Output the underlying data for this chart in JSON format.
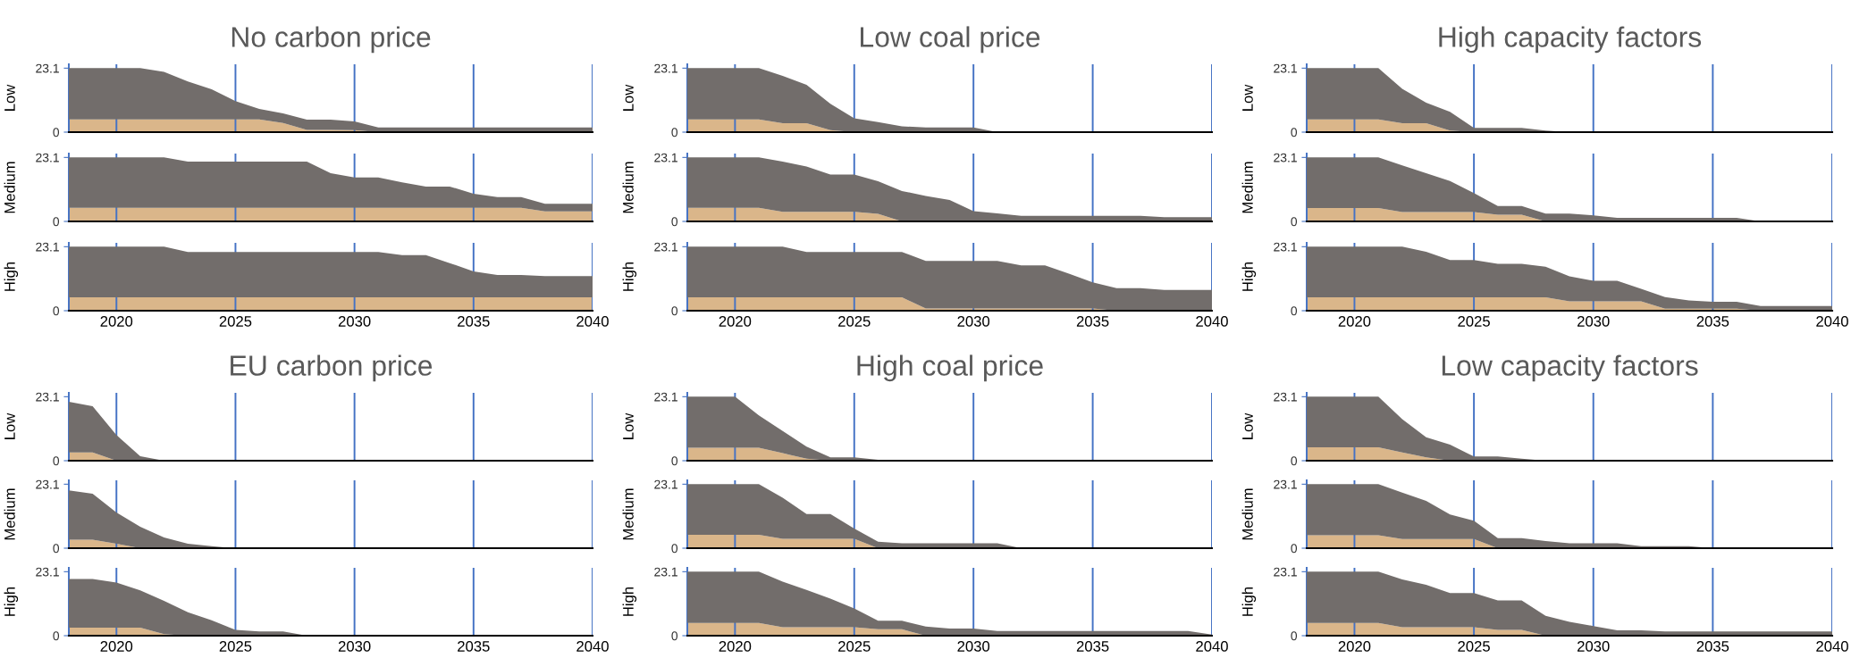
{
  "chart_data": [
    {
      "type": "area",
      "stacked": true,
      "title": "No carbon price",
      "ylabel": "Low",
      "x": [
        2018,
        2019,
        2020,
        2021,
        2022,
        2023,
        2024,
        2025,
        2026,
        2027,
        2028,
        2029,
        2030,
        2031,
        2032,
        2033,
        2034,
        2035,
        2036,
        2037,
        2038,
        2039,
        2040
      ],
      "xlim": [
        2018,
        2040
      ],
      "xticks": [
        2020,
        2025,
        2030,
        2035,
        2040
      ],
      "ylim": [
        0,
        24.5
      ],
      "yticks": [
        0,
        23.1
      ],
      "grid": "x",
      "tick_labels": "y",
      "series": [
        {
          "color": "#dab68a",
          "values": [
            4.6,
            4.6,
            4.6,
            4.6,
            4.6,
            4.6,
            4.6,
            4.6,
            4.6,
            3.3,
            0.8,
            0.8,
            0.7,
            0,
            0,
            0,
            0,
            0,
            0,
            0,
            0,
            0,
            0
          ]
        },
        {
          "color": "#726d6b",
          "values": [
            18.5,
            18.5,
            18.5,
            18.5,
            17.2,
            13.7,
            10.9,
            6.6,
            3.8,
            3.5,
            3.7,
            3.7,
            3.2,
            1.7,
            1.7,
            1.7,
            1.7,
            1.7,
            1.7,
            1.7,
            1.7,
            1.7,
            1.7
          ]
        }
      ]
    },
    {
      "type": "area",
      "stacked": true,
      "ylabel": "Medium",
      "x": [
        2018,
        2019,
        2020,
        2021,
        2022,
        2023,
        2024,
        2025,
        2026,
        2027,
        2028,
        2029,
        2030,
        2031,
        2032,
        2033,
        2034,
        2035,
        2036,
        2037,
        2038,
        2039,
        2040
      ],
      "xlim": [
        2018,
        2040
      ],
      "xticks": [
        2020,
        2025,
        2030,
        2035,
        2040
      ],
      "ylim": [
        0,
        24.5
      ],
      "yticks": [
        0,
        23.1
      ],
      "grid": "x",
      "tick_labels": "y",
      "series": [
        {
          "color": "#dab68a",
          "values": [
            4.9,
            4.9,
            4.9,
            4.9,
            4.9,
            4.9,
            4.9,
            4.9,
            4.9,
            4.9,
            4.9,
            4.9,
            4.9,
            4.9,
            4.9,
            4.9,
            4.9,
            4.9,
            4.9,
            4.9,
            3.6,
            3.6,
            3.6
          ]
        },
        {
          "color": "#726d6b",
          "values": [
            18.2,
            18.2,
            18.2,
            18.2,
            18.2,
            16.7,
            16.7,
            16.7,
            16.7,
            16.7,
            16.7,
            12.5,
            11.0,
            11.0,
            9.2,
            7.7,
            7.7,
            5.1,
            3.9,
            3.9,
            2.8,
            2.8,
            2.8
          ]
        }
      ]
    },
    {
      "type": "area",
      "stacked": true,
      "ylabel": "High",
      "x": [
        2018,
        2019,
        2020,
        2021,
        2022,
        2023,
        2024,
        2025,
        2026,
        2027,
        2028,
        2029,
        2030,
        2031,
        2032,
        2033,
        2034,
        2035,
        2036,
        2037,
        2038,
        2039,
        2040
      ],
      "xlim": [
        2018,
        2040
      ],
      "xticks": [
        2020,
        2025,
        2030,
        2035,
        2040
      ],
      "ylim": [
        0,
        24.5
      ],
      "yticks": [
        0,
        23.1
      ],
      "grid": "x",
      "series": [
        {
          "color": "#dab68a",
          "values": [
            4.8,
            4.8,
            4.8,
            4.8,
            4.8,
            4.8,
            4.8,
            4.8,
            4.8,
            4.8,
            4.8,
            4.8,
            4.8,
            4.8,
            4.8,
            4.8,
            4.8,
            4.8,
            4.8,
            4.8,
            4.8,
            4.8,
            4.8
          ]
        },
        {
          "color": "#726d6b",
          "values": [
            18.3,
            18.3,
            18.3,
            18.3,
            18.3,
            16.4,
            16.4,
            16.4,
            16.4,
            16.4,
            16.4,
            16.4,
            16.4,
            16.4,
            15.3,
            15.3,
            12.4,
            9.4,
            8.1,
            8.1,
            7.7,
            7.7,
            7.7
          ]
        }
      ]
    },
    {
      "type": "area",
      "stacked": true,
      "title": "Low coal price",
      "ylabel": "Low",
      "x": [
        2018,
        2019,
        2020,
        2021,
        2022,
        2023,
        2024,
        2025,
        2026,
        2027,
        2028,
        2029,
        2030,
        2031,
        2032,
        2033,
        2034,
        2035,
        2036,
        2037,
        2038,
        2039,
        2040
      ],
      "xlim": [
        2018,
        2040
      ],
      "xticks": [
        2020,
        2025,
        2030,
        2035,
        2040
      ],
      "ylim": [
        0,
        24.5
      ],
      "yticks": [
        0,
        23.1
      ],
      "grid": "x",
      "tick_labels": "y",
      "series": [
        {
          "color": "#dab68a",
          "values": [
            4.6,
            4.6,
            4.6,
            4.6,
            3.2,
            3.2,
            0.7,
            0,
            0,
            0,
            0,
            0,
            0,
            0,
            0,
            0,
            0,
            0,
            0,
            0,
            0,
            0,
            0
          ]
        },
        {
          "color": "#726d6b",
          "values": [
            18.5,
            18.5,
            18.5,
            18.5,
            17.1,
            13.9,
            9.5,
            5.0,
            3.6,
            2.1,
            1.7,
            1.7,
            1.7,
            0,
            0,
            0,
            0,
            0,
            0,
            0,
            0,
            0,
            0
          ]
        }
      ]
    },
    {
      "type": "area",
      "stacked": true,
      "ylabel": "Medium",
      "x": [
        2018,
        2019,
        2020,
        2021,
        2022,
        2023,
        2024,
        2025,
        2026,
        2027,
        2028,
        2029,
        2030,
        2031,
        2032,
        2033,
        2034,
        2035,
        2036,
        2037,
        2038,
        2039,
        2040
      ],
      "xlim": [
        2018,
        2040
      ],
      "xticks": [
        2020,
        2025,
        2030,
        2035,
        2040
      ],
      "ylim": [
        0,
        24.5
      ],
      "yticks": [
        0,
        23.1
      ],
      "grid": "x",
      "tick_labels": "y",
      "series": [
        {
          "color": "#dab68a",
          "values": [
            4.9,
            4.9,
            4.9,
            4.9,
            3.5,
            3.5,
            3.5,
            3.5,
            2.7,
            0,
            0,
            0,
            0,
            0,
            0,
            0,
            0,
            0,
            0,
            0,
            0,
            0,
            0
          ]
        },
        {
          "color": "#726d6b",
          "values": [
            18.2,
            18.2,
            18.2,
            18.2,
            18.1,
            16.3,
            13.4,
            13.4,
            11.8,
            11.0,
            9.2,
            7.7,
            3.7,
            2.9,
            2.0,
            2.0,
            2.0,
            2.0,
            2.0,
            2.0,
            1.5,
            1.5,
            1.5
          ]
        }
      ]
    },
    {
      "type": "area",
      "stacked": true,
      "ylabel": "High",
      "x": [
        2018,
        2019,
        2020,
        2021,
        2022,
        2023,
        2024,
        2025,
        2026,
        2027,
        2028,
        2029,
        2030,
        2031,
        2032,
        2033,
        2034,
        2035,
        2036,
        2037,
        2038,
        2039,
        2040
      ],
      "xlim": [
        2018,
        2040
      ],
      "xticks": [
        2020,
        2025,
        2030,
        2035,
        2040
      ],
      "ylim": [
        0,
        24.5
      ],
      "yticks": [
        0,
        23.1
      ],
      "grid": "x",
      "series": [
        {
          "color": "#dab68a",
          "values": [
            4.8,
            4.8,
            4.8,
            4.8,
            4.8,
            4.8,
            4.8,
            4.8,
            4.8,
            4.8,
            0.8,
            0.8,
            0.8,
            0.8,
            0.8,
            0.8,
            0.8,
            0.8,
            0,
            0,
            0,
            0,
            0
          ]
        },
        {
          "color": "#726d6b",
          "values": [
            18.3,
            18.3,
            18.3,
            18.3,
            18.3,
            16.4,
            16.4,
            16.4,
            16.4,
            16.4,
            17.2,
            17.2,
            17.2,
            17.2,
            15.6,
            15.6,
            12.6,
            9.4,
            8.1,
            8.1,
            7.5,
            7.5,
            7.5
          ]
        }
      ]
    },
    {
      "type": "area",
      "stacked": true,
      "title": "High capacity factors",
      "ylabel": "Low",
      "x": [
        2018,
        2019,
        2020,
        2021,
        2022,
        2023,
        2024,
        2025,
        2026,
        2027,
        2028,
        2029,
        2030,
        2031,
        2032,
        2033,
        2034,
        2035,
        2036,
        2037,
        2038,
        2039,
        2040
      ],
      "xlim": [
        2018,
        2040
      ],
      "xticks": [
        2020,
        2025,
        2030,
        2035,
        2040
      ],
      "ylim": [
        0,
        24.5
      ],
      "yticks": [
        0,
        23.1
      ],
      "grid": "x",
      "tick_labels": "y",
      "series": [
        {
          "color": "#dab68a",
          "values": [
            4.6,
            4.6,
            4.6,
            4.6,
            3.2,
            3.2,
            0.6,
            0,
            0,
            0,
            0,
            0,
            0,
            0,
            0,
            0,
            0,
            0,
            0,
            0,
            0,
            0,
            0
          ]
        },
        {
          "color": "#726d6b",
          "values": [
            18.5,
            18.5,
            18.5,
            18.5,
            12.4,
            7.4,
            6.7,
            1.5,
            1.5,
            1.5,
            0.6,
            0,
            0,
            0,
            0,
            0,
            0,
            0,
            0,
            0,
            0,
            0,
            0
          ]
        }
      ]
    },
    {
      "type": "area",
      "stacked": true,
      "ylabel": "Medium",
      "x": [
        2018,
        2019,
        2020,
        2021,
        2022,
        2023,
        2024,
        2025,
        2026,
        2027,
        2028,
        2029,
        2030,
        2031,
        2032,
        2033,
        2034,
        2035,
        2036,
        2037,
        2038,
        2039,
        2040
      ],
      "xlim": [
        2018,
        2040
      ],
      "xticks": [
        2020,
        2025,
        2030,
        2035,
        2040
      ],
      "ylim": [
        0,
        24.5
      ],
      "yticks": [
        0,
        23.1
      ],
      "grid": "x",
      "tick_labels": "y",
      "series": [
        {
          "color": "#dab68a",
          "values": [
            4.8,
            4.8,
            4.8,
            4.8,
            3.4,
            3.4,
            3.4,
            3.4,
            2.4,
            2.4,
            0,
            0,
            0,
            0,
            0,
            0,
            0,
            0,
            0,
            0,
            0,
            0,
            0
          ]
        },
        {
          "color": "#726d6b",
          "values": [
            18.3,
            18.3,
            18.3,
            18.3,
            16.8,
            14.0,
            11.2,
            6.8,
            3.2,
            3.2,
            2.8,
            2.8,
            2.2,
            1.3,
            1.3,
            1.3,
            1.3,
            1.3,
            1.3,
            0,
            0,
            0,
            0
          ]
        }
      ]
    },
    {
      "type": "area",
      "stacked": true,
      "ylabel": "High",
      "x": [
        2018,
        2019,
        2020,
        2021,
        2022,
        2023,
        2024,
        2025,
        2026,
        2027,
        2028,
        2029,
        2030,
        2031,
        2032,
        2033,
        2034,
        2035,
        2036,
        2037,
        2038,
        2039,
        2040
      ],
      "xlim": [
        2018,
        2040
      ],
      "xticks": [
        2020,
        2025,
        2030,
        2035,
        2040
      ],
      "ylim": [
        0,
        24.5
      ],
      "yticks": [
        0,
        23.1
      ],
      "grid": "x",
      "series": [
        {
          "color": "#dab68a",
          "values": [
            4.8,
            4.8,
            4.8,
            4.8,
            4.8,
            4.8,
            4.8,
            4.8,
            4.8,
            4.8,
            4.8,
            3.4,
            3.4,
            3.4,
            3.4,
            0.7,
            0.7,
            0.7,
            0.7,
            0,
            0,
            0,
            0
          ]
        },
        {
          "color": "#726d6b",
          "values": [
            18.3,
            18.3,
            18.3,
            18.3,
            18.3,
            16.5,
            13.5,
            13.5,
            12.1,
            12.1,
            11.1,
            9.0,
            7.4,
            7.4,
            4.5,
            4.2,
            3.0,
            2.5,
            2.5,
            1.7,
            1.7,
            1.7,
            1.7
          ]
        }
      ]
    },
    {
      "type": "area",
      "stacked": true,
      "title": "EU carbon price",
      "ylabel": "Low",
      "x": [
        2018,
        2019,
        2020,
        2021,
        2022,
        2023,
        2024,
        2025,
        2026,
        2027,
        2028,
        2029,
        2030,
        2031,
        2032,
        2033,
        2034,
        2035,
        2036,
        2037,
        2038,
        2039,
        2040
      ],
      "xlim": [
        2018,
        2040
      ],
      "xticks": [
        2020,
        2025,
        2030,
        2035,
        2040
      ],
      "ylim": [
        0,
        24.5
      ],
      "yticks": [
        0,
        23.1
      ],
      "grid": "x",
      "tick_labels": "y",
      "series": [
        {
          "color": "#dab68a",
          "values": [
            3.0,
            3.0,
            0,
            0,
            0,
            0,
            0,
            0,
            0,
            0,
            0,
            0,
            0,
            0,
            0,
            0,
            0,
            0,
            0,
            0,
            0,
            0,
            0
          ]
        },
        {
          "color": "#726d6b",
          "values": [
            18.3,
            16.7,
            9.3,
            1.6,
            0,
            0,
            0,
            0,
            0,
            0,
            0,
            0,
            0,
            0,
            0,
            0,
            0,
            0,
            0,
            0,
            0,
            0,
            0
          ]
        }
      ]
    },
    {
      "type": "area",
      "stacked": true,
      "ylabel": "Medium",
      "x": [
        2018,
        2019,
        2020,
        2021,
        2022,
        2023,
        2024,
        2025,
        2026,
        2027,
        2028,
        2029,
        2030,
        2031,
        2032,
        2033,
        2034,
        2035,
        2036,
        2037,
        2038,
        2039,
        2040
      ],
      "xlim": [
        2018,
        2040
      ],
      "xticks": [
        2020,
        2025,
        2030,
        2035,
        2040
      ],
      "ylim": [
        0,
        24.5
      ],
      "yticks": [
        0,
        23.1
      ],
      "grid": "x",
      "tick_labels": "y",
      "series": [
        {
          "color": "#dab68a",
          "values": [
            3.1,
            3.1,
            1.6,
            0,
            0,
            0,
            0,
            0,
            0,
            0,
            0,
            0,
            0,
            0,
            0,
            0,
            0,
            0,
            0,
            0,
            0,
            0,
            0
          ]
        },
        {
          "color": "#726d6b",
          "values": [
            17.8,
            16.6,
            11.3,
            7.7,
            3.9,
            1.6,
            0.7,
            0,
            0,
            0,
            0,
            0,
            0,
            0,
            0,
            0,
            0,
            0,
            0,
            0,
            0,
            0,
            0
          ]
        }
      ]
    },
    {
      "type": "area",
      "stacked": true,
      "ylabel": "High",
      "x": [
        2018,
        2019,
        2020,
        2021,
        2022,
        2023,
        2024,
        2025,
        2026,
        2027,
        2028,
        2029,
        2030,
        2031,
        2032,
        2033,
        2034,
        2035,
        2036,
        2037,
        2038,
        2039,
        2040
      ],
      "xlim": [
        2018,
        2040
      ],
      "xticks": [
        2020,
        2025,
        2030,
        2035,
        2040
      ],
      "ylim": [
        0,
        24.5
      ],
      "yticks": [
        0,
        23.1
      ],
      "grid": "x",
      "series": [
        {
          "color": "#dab68a",
          "values": [
            2.9,
            2.9,
            2.9,
            2.9,
            0.6,
            0,
            0,
            0,
            0,
            0,
            0,
            0,
            0,
            0,
            0,
            0,
            0,
            0,
            0,
            0,
            0,
            0,
            0
          ]
        },
        {
          "color": "#726d6b",
          "values": [
            17.6,
            17.6,
            16.3,
            13.5,
            12.0,
            8.5,
            5.6,
            2.1,
            1.5,
            1.5,
            0,
            0,
            0,
            0,
            0,
            0,
            0,
            0,
            0,
            0,
            0,
            0,
            0
          ]
        }
      ]
    },
    {
      "type": "area",
      "stacked": true,
      "title": "High coal price",
      "ylabel": "Low",
      "x": [
        2018,
        2019,
        2020,
        2021,
        2022,
        2023,
        2024,
        2025,
        2026,
        2027,
        2028,
        2029,
        2030,
        2031,
        2032,
        2033,
        2034,
        2035,
        2036,
        2037,
        2038,
        2039,
        2040
      ],
      "xlim": [
        2018,
        2040
      ],
      "xticks": [
        2020,
        2025,
        2030,
        2035,
        2040
      ],
      "ylim": [
        0,
        24.5
      ],
      "yticks": [
        0,
        23.1
      ],
      "grid": "x",
      "tick_labels": "y",
      "series": [
        {
          "color": "#dab68a",
          "values": [
            4.7,
            4.7,
            4.7,
            4.7,
            2.7,
            0.7,
            0,
            0,
            0,
            0,
            0,
            0,
            0,
            0,
            0,
            0,
            0,
            0,
            0,
            0,
            0,
            0,
            0
          ]
        },
        {
          "color": "#726d6b",
          "values": [
            18.4,
            18.4,
            18.4,
            11.7,
            8.0,
            4.4,
            1.2,
            1.2,
            0.3,
            0,
            0,
            0,
            0,
            0,
            0,
            0,
            0,
            0,
            0,
            0,
            0,
            0,
            0
          ]
        }
      ]
    },
    {
      "type": "area",
      "stacked": true,
      "ylabel": "Medium",
      "x": [
        2018,
        2019,
        2020,
        2021,
        2022,
        2023,
        2024,
        2025,
        2026,
        2027,
        2028,
        2029,
        2030,
        2031,
        2032,
        2033,
        2034,
        2035,
        2036,
        2037,
        2038,
        2039,
        2040
      ],
      "xlim": [
        2018,
        2040
      ],
      "xticks": [
        2020,
        2025,
        2030,
        2035,
        2040
      ],
      "ylim": [
        0,
        24.5
      ],
      "yticks": [
        0,
        23.1
      ],
      "grid": "x",
      "tick_labels": "y",
      "series": [
        {
          "color": "#dab68a",
          "values": [
            4.8,
            4.8,
            4.8,
            4.8,
            3.4,
            3.4,
            3.4,
            3.4,
            0,
            0,
            0,
            0,
            0,
            0,
            0,
            0,
            0,
            0,
            0,
            0,
            0,
            0,
            0
          ]
        },
        {
          "color": "#726d6b",
          "values": [
            18.3,
            18.3,
            18.3,
            18.3,
            14.8,
            8.9,
            8.9,
            3.7,
            2.3,
            1.8,
            1.8,
            1.8,
            1.8,
            1.8,
            0,
            0,
            0,
            0,
            0,
            0,
            0,
            0,
            0
          ]
        }
      ]
    },
    {
      "type": "area",
      "stacked": true,
      "ylabel": "High",
      "x": [
        2018,
        2019,
        2020,
        2021,
        2022,
        2023,
        2024,
        2025,
        2026,
        2027,
        2028,
        2029,
        2030,
        2031,
        2032,
        2033,
        2034,
        2035,
        2036,
        2037,
        2038,
        2039,
        2040
      ],
      "xlim": [
        2018,
        2040
      ],
      "xticks": [
        2020,
        2025,
        2030,
        2035,
        2040
      ],
      "ylim": [
        0,
        24.5
      ],
      "yticks": [
        0,
        23.1
      ],
      "grid": "x",
      "series": [
        {
          "color": "#dab68a",
          "values": [
            4.6,
            4.6,
            4.6,
            4.6,
            3.1,
            3.1,
            3.1,
            3.1,
            2.3,
            2.3,
            0,
            0,
            0,
            0,
            0,
            0,
            0,
            0,
            0,
            0,
            0,
            0,
            0
          ]
        },
        {
          "color": "#726d6b",
          "values": [
            18.5,
            18.5,
            18.5,
            18.5,
            16.4,
            13.4,
            10.3,
            6.7,
            3.1,
            3.1,
            3.3,
            2.6,
            2.6,
            1.7,
            1.7,
            1.7,
            1.7,
            1.7,
            1.7,
            1.7,
            1.7,
            1.7,
            0.4
          ]
        }
      ]
    },
    {
      "type": "area",
      "stacked": true,
      "title": "Low capacity factors",
      "ylabel": "Low",
      "x": [
        2018,
        2019,
        2020,
        2021,
        2022,
        2023,
        2024,
        2025,
        2026,
        2027,
        2028,
        2029,
        2030,
        2031,
        2032,
        2033,
        2034,
        2035,
        2036,
        2037,
        2038,
        2039,
        2040
      ],
      "xlim": [
        2018,
        2040
      ],
      "xticks": [
        2020,
        2025,
        2030,
        2035,
        2040
      ],
      "ylim": [
        0,
        24.5
      ],
      "yticks": [
        0,
        23.1
      ],
      "grid": "x",
      "tick_labels": "y",
      "series": [
        {
          "color": "#dab68a",
          "values": [
            4.8,
            4.8,
            4.8,
            4.8,
            3.0,
            1.2,
            0,
            0,
            0,
            0,
            0,
            0,
            0,
            0,
            0,
            0,
            0,
            0,
            0,
            0,
            0,
            0,
            0
          ]
        },
        {
          "color": "#726d6b",
          "values": [
            18.3,
            18.3,
            18.3,
            18.3,
            12.0,
            7.3,
            5.8,
            1.5,
            1.5,
            0.7,
            0,
            0,
            0,
            0,
            0,
            0,
            0,
            0,
            0,
            0,
            0,
            0,
            0
          ]
        }
      ]
    },
    {
      "type": "area",
      "stacked": true,
      "ylabel": "Medium",
      "x": [
        2018,
        2019,
        2020,
        2021,
        2022,
        2023,
        2024,
        2025,
        2026,
        2027,
        2028,
        2029,
        2030,
        2031,
        2032,
        2033,
        2034,
        2035,
        2036,
        2037,
        2038,
        2039,
        2040
      ],
      "xlim": [
        2018,
        2040
      ],
      "xticks": [
        2020,
        2025,
        2030,
        2035,
        2040
      ],
      "ylim": [
        0,
        24.5
      ],
      "yticks": [
        0,
        23.1
      ],
      "grid": "x",
      "tick_labels": "y",
      "series": [
        {
          "color": "#dab68a",
          "values": [
            4.7,
            4.7,
            4.7,
            4.7,
            3.3,
            3.3,
            3.3,
            3.3,
            0,
            0,
            0,
            0,
            0,
            0,
            0,
            0,
            0,
            0,
            0,
            0,
            0,
            0,
            0
          ]
        },
        {
          "color": "#726d6b",
          "values": [
            18.4,
            18.4,
            18.4,
            18.4,
            16.8,
            13.8,
            8.9,
            6.6,
            3.6,
            3.6,
            2.6,
            1.8,
            1.8,
            1.8,
            0.7,
            0.7,
            0.7,
            0,
            0,
            0,
            0,
            0,
            0
          ]
        }
      ]
    },
    {
      "type": "area",
      "stacked": true,
      "ylabel": "High",
      "x": [
        2018,
        2019,
        2020,
        2021,
        2022,
        2023,
        2024,
        2025,
        2026,
        2027,
        2028,
        2029,
        2030,
        2031,
        2032,
        2033,
        2034,
        2035,
        2036,
        2037,
        2038,
        2039,
        2040
      ],
      "xlim": [
        2018,
        2040
      ],
      "xticks": [
        2020,
        2025,
        2030,
        2035,
        2040
      ],
      "ylim": [
        0,
        24.5
      ],
      "yticks": [
        0,
        23.1
      ],
      "grid": "x",
      "series": [
        {
          "color": "#dab68a",
          "values": [
            4.6,
            4.6,
            4.6,
            4.6,
            3.1,
            3.1,
            3.1,
            3.1,
            2.1,
            2.1,
            0,
            0,
            0,
            0,
            0,
            0,
            0,
            0,
            0,
            0,
            0,
            0,
            0
          ]
        },
        {
          "color": "#726d6b",
          "values": [
            18.5,
            18.5,
            18.5,
            18.5,
            17.2,
            15.3,
            12.3,
            12.3,
            10.6,
            10.6,
            7.2,
            5.0,
            3.5,
            1.9,
            1.9,
            1.5,
            1.5,
            1.5,
            1.5,
            1.5,
            1.5,
            1.5,
            1.5
          ]
        }
      ]
    }
  ]
}
